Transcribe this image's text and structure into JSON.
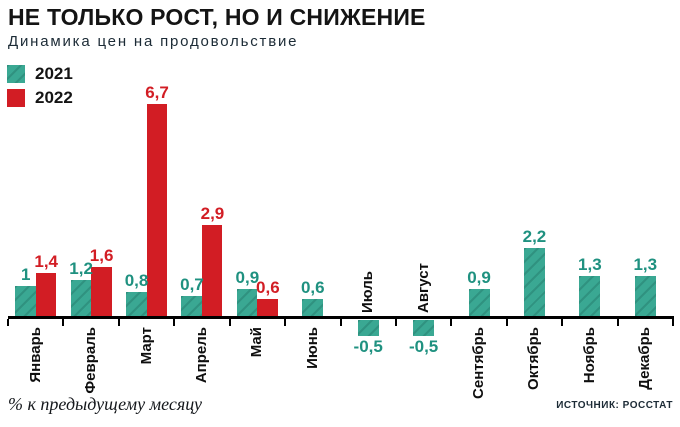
{
  "header": {
    "title": "НЕ ТОЛЬКО РОСТ, НО И СНИЖЕНИЕ",
    "subtitle": "Динамика цен на продовольствие"
  },
  "legend": {
    "items": [
      {
        "label": "2021",
        "color": "#3AA893",
        "hatched": true
      },
      {
        "label": "2022",
        "color": "#D21D24",
        "hatched": false
      }
    ]
  },
  "footer": {
    "note": "% к предыдущему месяцу",
    "source": "ИСТОЧНИК: РОССТАТ"
  },
  "chart_data": {
    "type": "bar",
    "title": "НЕ ТОЛЬКО РОСТ, НО И СНИЖЕНИЕ",
    "subtitle": "Динамика цен на продовольствие",
    "xlabel": "",
    "ylabel": "% к предыдущему месяцу",
    "source": "ИСТОЧНИК: РОССТАТ",
    "grid": false,
    "legend_position": "top-left",
    "ylim": [
      -0.5,
      6.7
    ],
    "categories": [
      "Январь",
      "Февраль",
      "Март",
      "Апрель",
      "Май",
      "Июнь",
      "Июль",
      "Август",
      "Сентябрь",
      "Октябрь",
      "Ноябрь",
      "Декабрь"
    ],
    "series": [
      {
        "name": "2021",
        "color": "#3AA893",
        "label_color": "#1F9180",
        "hatched": true,
        "values": [
          1,
          1.2,
          0.8,
          0.7,
          0.9,
          0.6,
          -0.5,
          -0.5,
          0.9,
          2.2,
          1.3,
          1.3
        ],
        "labels": [
          "1",
          "1,2",
          "0,8",
          "0,7",
          "0,9",
          "0,6",
          "-0,5",
          "-0,5",
          "0,9",
          "2,2",
          "1,3",
          "1,3"
        ]
      },
      {
        "name": "2022",
        "color": "#D21D24",
        "label_color": "#D21D24",
        "hatched": false,
        "values": [
          1.4,
          1.6,
          6.7,
          2.9,
          0.6,
          null,
          null,
          null,
          null,
          null,
          null,
          null
        ],
        "labels": [
          "1,4",
          "1,6",
          "6,7",
          "2,9",
          "0,6",
          null,
          null,
          null,
          null,
          null,
          null,
          null
        ]
      }
    ]
  }
}
